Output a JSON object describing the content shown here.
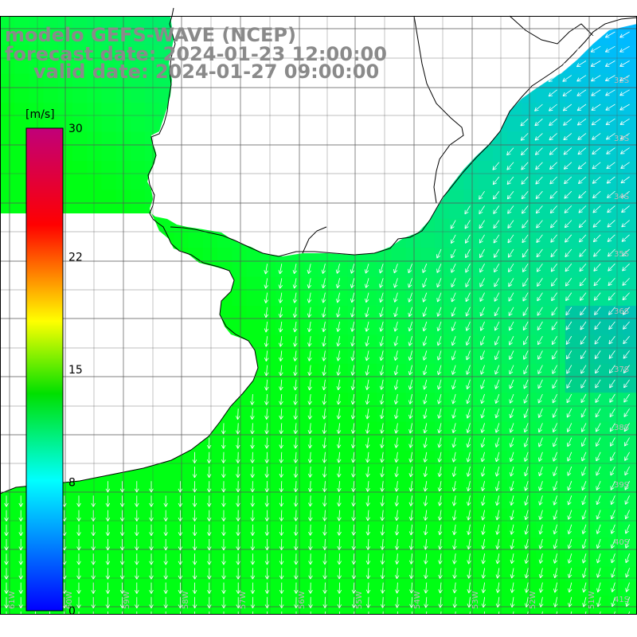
{
  "title": {
    "line1": "modelo GEFS-WAVE (NCEP)",
    "line2": "forecast date: 2024-01-23 12:00:00",
    "line3": "valid date: 2024-01-27 09:00:00"
  },
  "colorbar": {
    "unit": "[m/s]",
    "min": 0,
    "max": 30,
    "ticks": [
      "30",
      "22",
      "15",
      "8",
      "0"
    ],
    "tick_values": [
      30,
      22,
      15,
      8,
      0
    ],
    "colors": [
      "#0000ff",
      "#00ffff",
      "#00e000",
      "#ffff00",
      "#ff0000",
      "#c0007a"
    ]
  },
  "map": {
    "lat_labels": [
      "32S",
      "33S",
      "34S",
      "35S",
      "36S",
      "37S",
      "38S",
      "39S",
      "40S",
      "41S"
    ],
    "lon_labels": [
      "61W",
      "60W",
      "59W",
      "58W",
      "57W",
      "56W",
      "55W",
      "54W",
      "53W",
      "52W",
      "51W"
    ],
    "land_color": "#ffffff",
    "grid_color": "#555555",
    "coast_color": "#000000",
    "arrow_color": "#ffffff",
    "dominant_direction": "from north-east"
  }
}
